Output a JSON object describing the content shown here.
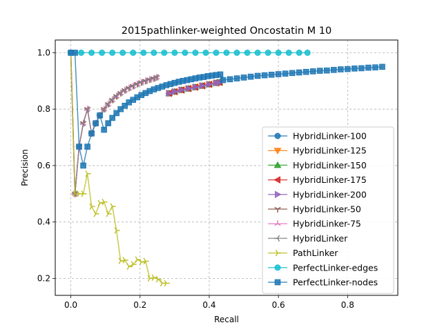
{
  "chart_data": {
    "type": "line",
    "title": "2015pathlinker-weighted Oncostatin M 10",
    "xlabel": "Recall",
    "ylabel": "Precision",
    "xlim": [
      -0.045,
      0.945
    ],
    "ylim": [
      0.14,
      1.045
    ],
    "xticks": [
      0.0,
      0.2,
      0.4,
      0.6,
      0.8
    ],
    "xtick_labels": [
      "0.0",
      "0.2",
      "0.4",
      "0.6",
      "0.8"
    ],
    "yticks": [
      0.2,
      0.4,
      0.6,
      0.8,
      1.0
    ],
    "ytick_labels": [
      "0.2",
      "0.4",
      "0.6",
      "0.8",
      "1.0"
    ],
    "grid": true,
    "legend_position": "lower-right",
    "series": [
      {
        "name": "HybridLinker-100",
        "color": "#1f77b4",
        "marker": "circle",
        "x": [
          0.284,
          0.3,
          0.32,
          0.34,
          0.36,
          0.38,
          0.4,
          0.42,
          0.43
        ],
        "y": [
          0.856,
          0.862,
          0.868,
          0.873,
          0.878,
          0.883,
          0.888,
          0.893,
          0.895
        ]
      },
      {
        "name": "HybridLinker-125",
        "color": "#ff7f0e",
        "marker": "triangle-down",
        "x": [
          0.284,
          0.3,
          0.32,
          0.34,
          0.36,
          0.38,
          0.4,
          0.42,
          0.43
        ],
        "y": [
          0.856,
          0.862,
          0.868,
          0.873,
          0.878,
          0.883,
          0.888,
          0.893,
          0.895
        ]
      },
      {
        "name": "HybridLinker-150",
        "color": "#2ca02c",
        "marker": "triangle-up",
        "x": [
          0.284,
          0.3,
          0.32,
          0.34,
          0.36,
          0.38,
          0.4,
          0.42,
          0.43
        ],
        "y": [
          0.856,
          0.862,
          0.868,
          0.873,
          0.878,
          0.883,
          0.888,
          0.893,
          0.895
        ]
      },
      {
        "name": "HybridLinker-175",
        "color": "#d62728",
        "marker": "triangle-left",
        "x": [
          0.284,
          0.3,
          0.32,
          0.34,
          0.36,
          0.38,
          0.4,
          0.42,
          0.43
        ],
        "y": [
          0.856,
          0.862,
          0.868,
          0.873,
          0.878,
          0.883,
          0.888,
          0.893,
          0.895
        ]
      },
      {
        "name": "HybridLinker-200",
        "color": "#9467bd",
        "marker": "triangle-right",
        "x": [
          0.284,
          0.3,
          0.32,
          0.34,
          0.36,
          0.38,
          0.4,
          0.42,
          0.43
        ],
        "y": [
          0.856,
          0.862,
          0.868,
          0.873,
          0.878,
          0.883,
          0.888,
          0.893,
          0.895
        ]
      },
      {
        "name": "HybridLinker-50",
        "color": "#8c564b",
        "marker": "tri-down",
        "x": [
          0.0,
          0.012,
          0.024,
          0.036,
          0.048,
          0.06,
          0.072,
          0.084,
          0.096,
          0.108,
          0.12,
          0.132,
          0.144,
          0.156,
          0.168,
          0.18,
          0.192,
          0.204,
          0.216,
          0.228,
          0.24,
          0.248
        ],
        "y": [
          1.0,
          0.5,
          0.667,
          0.75,
          0.8,
          0.714,
          0.75,
          0.778,
          0.8,
          0.818,
          0.833,
          0.846,
          0.857,
          0.867,
          0.875,
          0.882,
          0.889,
          0.895,
          0.9,
          0.905,
          0.909,
          0.913
        ]
      },
      {
        "name": "HybridLinker-75",
        "color": "#e377c2",
        "marker": "tri-up",
        "x": [
          0.0,
          0.012,
          0.024,
          0.036,
          0.048,
          0.06,
          0.072,
          0.084,
          0.096,
          0.108,
          0.12,
          0.132,
          0.144,
          0.156,
          0.168,
          0.18,
          0.192,
          0.204,
          0.216,
          0.228,
          0.24,
          0.248
        ],
        "y": [
          1.0,
          0.5,
          0.667,
          0.75,
          0.8,
          0.714,
          0.75,
          0.778,
          0.8,
          0.818,
          0.833,
          0.846,
          0.857,
          0.867,
          0.875,
          0.882,
          0.889,
          0.895,
          0.9,
          0.905,
          0.909,
          0.913
        ]
      },
      {
        "name": "HybridLinker",
        "color": "#7f7f7f",
        "marker": "tri-left",
        "x": [
          0.0,
          0.012,
          0.024,
          0.036,
          0.048,
          0.06,
          0.072,
          0.084,
          0.096,
          0.108,
          0.12,
          0.132,
          0.144,
          0.156,
          0.168,
          0.18,
          0.192,
          0.204,
          0.216,
          0.228,
          0.24,
          0.248
        ],
        "y": [
          1.0,
          0.5,
          0.667,
          0.75,
          0.8,
          0.714,
          0.75,
          0.778,
          0.8,
          0.818,
          0.833,
          0.846,
          0.857,
          0.867,
          0.875,
          0.882,
          0.889,
          0.895,
          0.9,
          0.905,
          0.909,
          0.913
        ]
      },
      {
        "name": "PathLinker",
        "color": "#bcbd22",
        "marker": "tri-right",
        "x": [
          0.0,
          0.012,
          0.024,
          0.036,
          0.048,
          0.06,
          0.072,
          0.084,
          0.096,
          0.108,
          0.12,
          0.132,
          0.144,
          0.156,
          0.168,
          0.18,
          0.192,
          0.204,
          0.216,
          0.228,
          0.24,
          0.252,
          0.264,
          0.276
        ],
        "y": [
          1.0,
          0.5,
          0.5,
          0.5,
          0.571,
          0.455,
          0.429,
          0.467,
          0.471,
          0.429,
          0.455,
          0.37,
          0.262,
          0.265,
          0.242,
          0.25,
          0.267,
          0.258,
          0.261,
          0.2,
          0.203,
          0.197,
          0.183,
          0.183
        ]
      },
      {
        "name": "PerfectLinker-edges",
        "color": "#17becf",
        "marker": "circle",
        "x": [
          0.0,
          0.03,
          0.06,
          0.09,
          0.12,
          0.15,
          0.18,
          0.21,
          0.24,
          0.27,
          0.3,
          0.33,
          0.36,
          0.39,
          0.42,
          0.45,
          0.48,
          0.51,
          0.54,
          0.57,
          0.6,
          0.63,
          0.66,
          0.684
        ],
        "y": [
          1.0,
          1.0,
          1.0,
          1.0,
          1.0,
          1.0,
          1.0,
          1.0,
          1.0,
          1.0,
          1.0,
          1.0,
          1.0,
          1.0,
          1.0,
          1.0,
          1.0,
          1.0,
          1.0,
          1.0,
          1.0,
          1.0,
          1.0,
          1.0
        ]
      },
      {
        "name": "PerfectLinker-nodes",
        "color": "#1f77b4",
        "marker": "square",
        "x": [
          0.0,
          0.012,
          0.024,
          0.036,
          0.048,
          0.06,
          0.072,
          0.084,
          0.096,
          0.108,
          0.12,
          0.132,
          0.144,
          0.156,
          0.168,
          0.18,
          0.192,
          0.204,
          0.216,
          0.228,
          0.24,
          0.252,
          0.264,
          0.276,
          0.288,
          0.3,
          0.312,
          0.324,
          0.336,
          0.348,
          0.36,
          0.372,
          0.384,
          0.396,
          0.408,
          0.42,
          0.432,
          0.44,
          0.46,
          0.48,
          0.5,
          0.52,
          0.54,
          0.56,
          0.58,
          0.6,
          0.62,
          0.64,
          0.66,
          0.68,
          0.7,
          0.72,
          0.74,
          0.76,
          0.78,
          0.8,
          0.82,
          0.84,
          0.86,
          0.88,
          0.9
        ],
        "y": [
          1.0,
          1.0,
          0.667,
          0.6,
          0.667,
          0.714,
          0.75,
          0.778,
          0.727,
          0.75,
          0.769,
          0.786,
          0.8,
          0.812,
          0.824,
          0.833,
          0.842,
          0.85,
          0.857,
          0.864,
          0.87,
          0.875,
          0.88,
          0.885,
          0.889,
          0.893,
          0.897,
          0.9,
          0.903,
          0.906,
          0.909,
          0.912,
          0.914,
          0.917,
          0.919,
          0.921,
          0.923,
          0.903,
          0.906,
          0.909,
          0.912,
          0.915,
          0.918,
          0.92,
          0.922,
          0.924,
          0.926,
          0.928,
          0.93,
          0.932,
          0.934,
          0.936,
          0.937,
          0.939,
          0.941,
          0.942,
          0.944,
          0.945,
          0.947,
          0.948,
          0.95
        ]
      }
    ]
  }
}
